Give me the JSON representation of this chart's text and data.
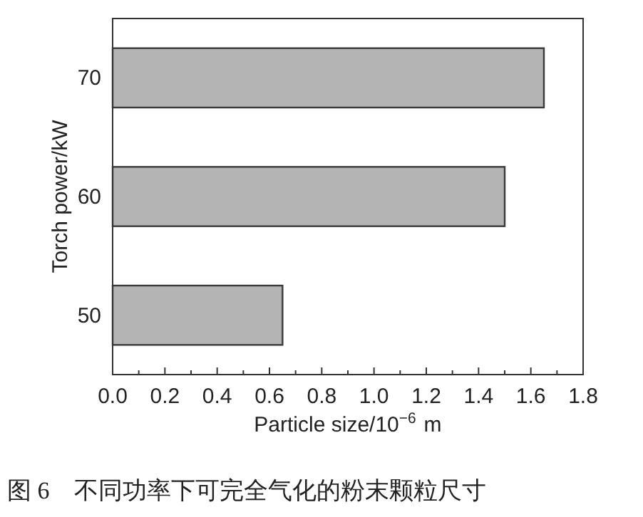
{
  "chart_data": {
    "type": "bar",
    "orientation": "horizontal",
    "categories": [
      "70",
      "60",
      "50"
    ],
    "values": [
      1.65,
      1.5,
      0.65
    ],
    "color": "#b4b4b4",
    "xlabel": "Particle size/10$^{−6}$ m",
    "ylabel": "Torch power/kW",
    "xlim": [
      0,
      1.8
    ],
    "xticks": [
      {
        "value": 0,
        "label": "0.0"
      },
      0.2,
      0.4,
      0.6,
      0.8,
      {
        "value": 1,
        "label": "1.0"
      },
      1.2,
      1.4,
      1.6,
      1.8
    ],
    "grid": false,
    "annotations": [
      "图 6　不同功率下可完全气化的粉末颗粒尺寸"
    ]
  }
}
